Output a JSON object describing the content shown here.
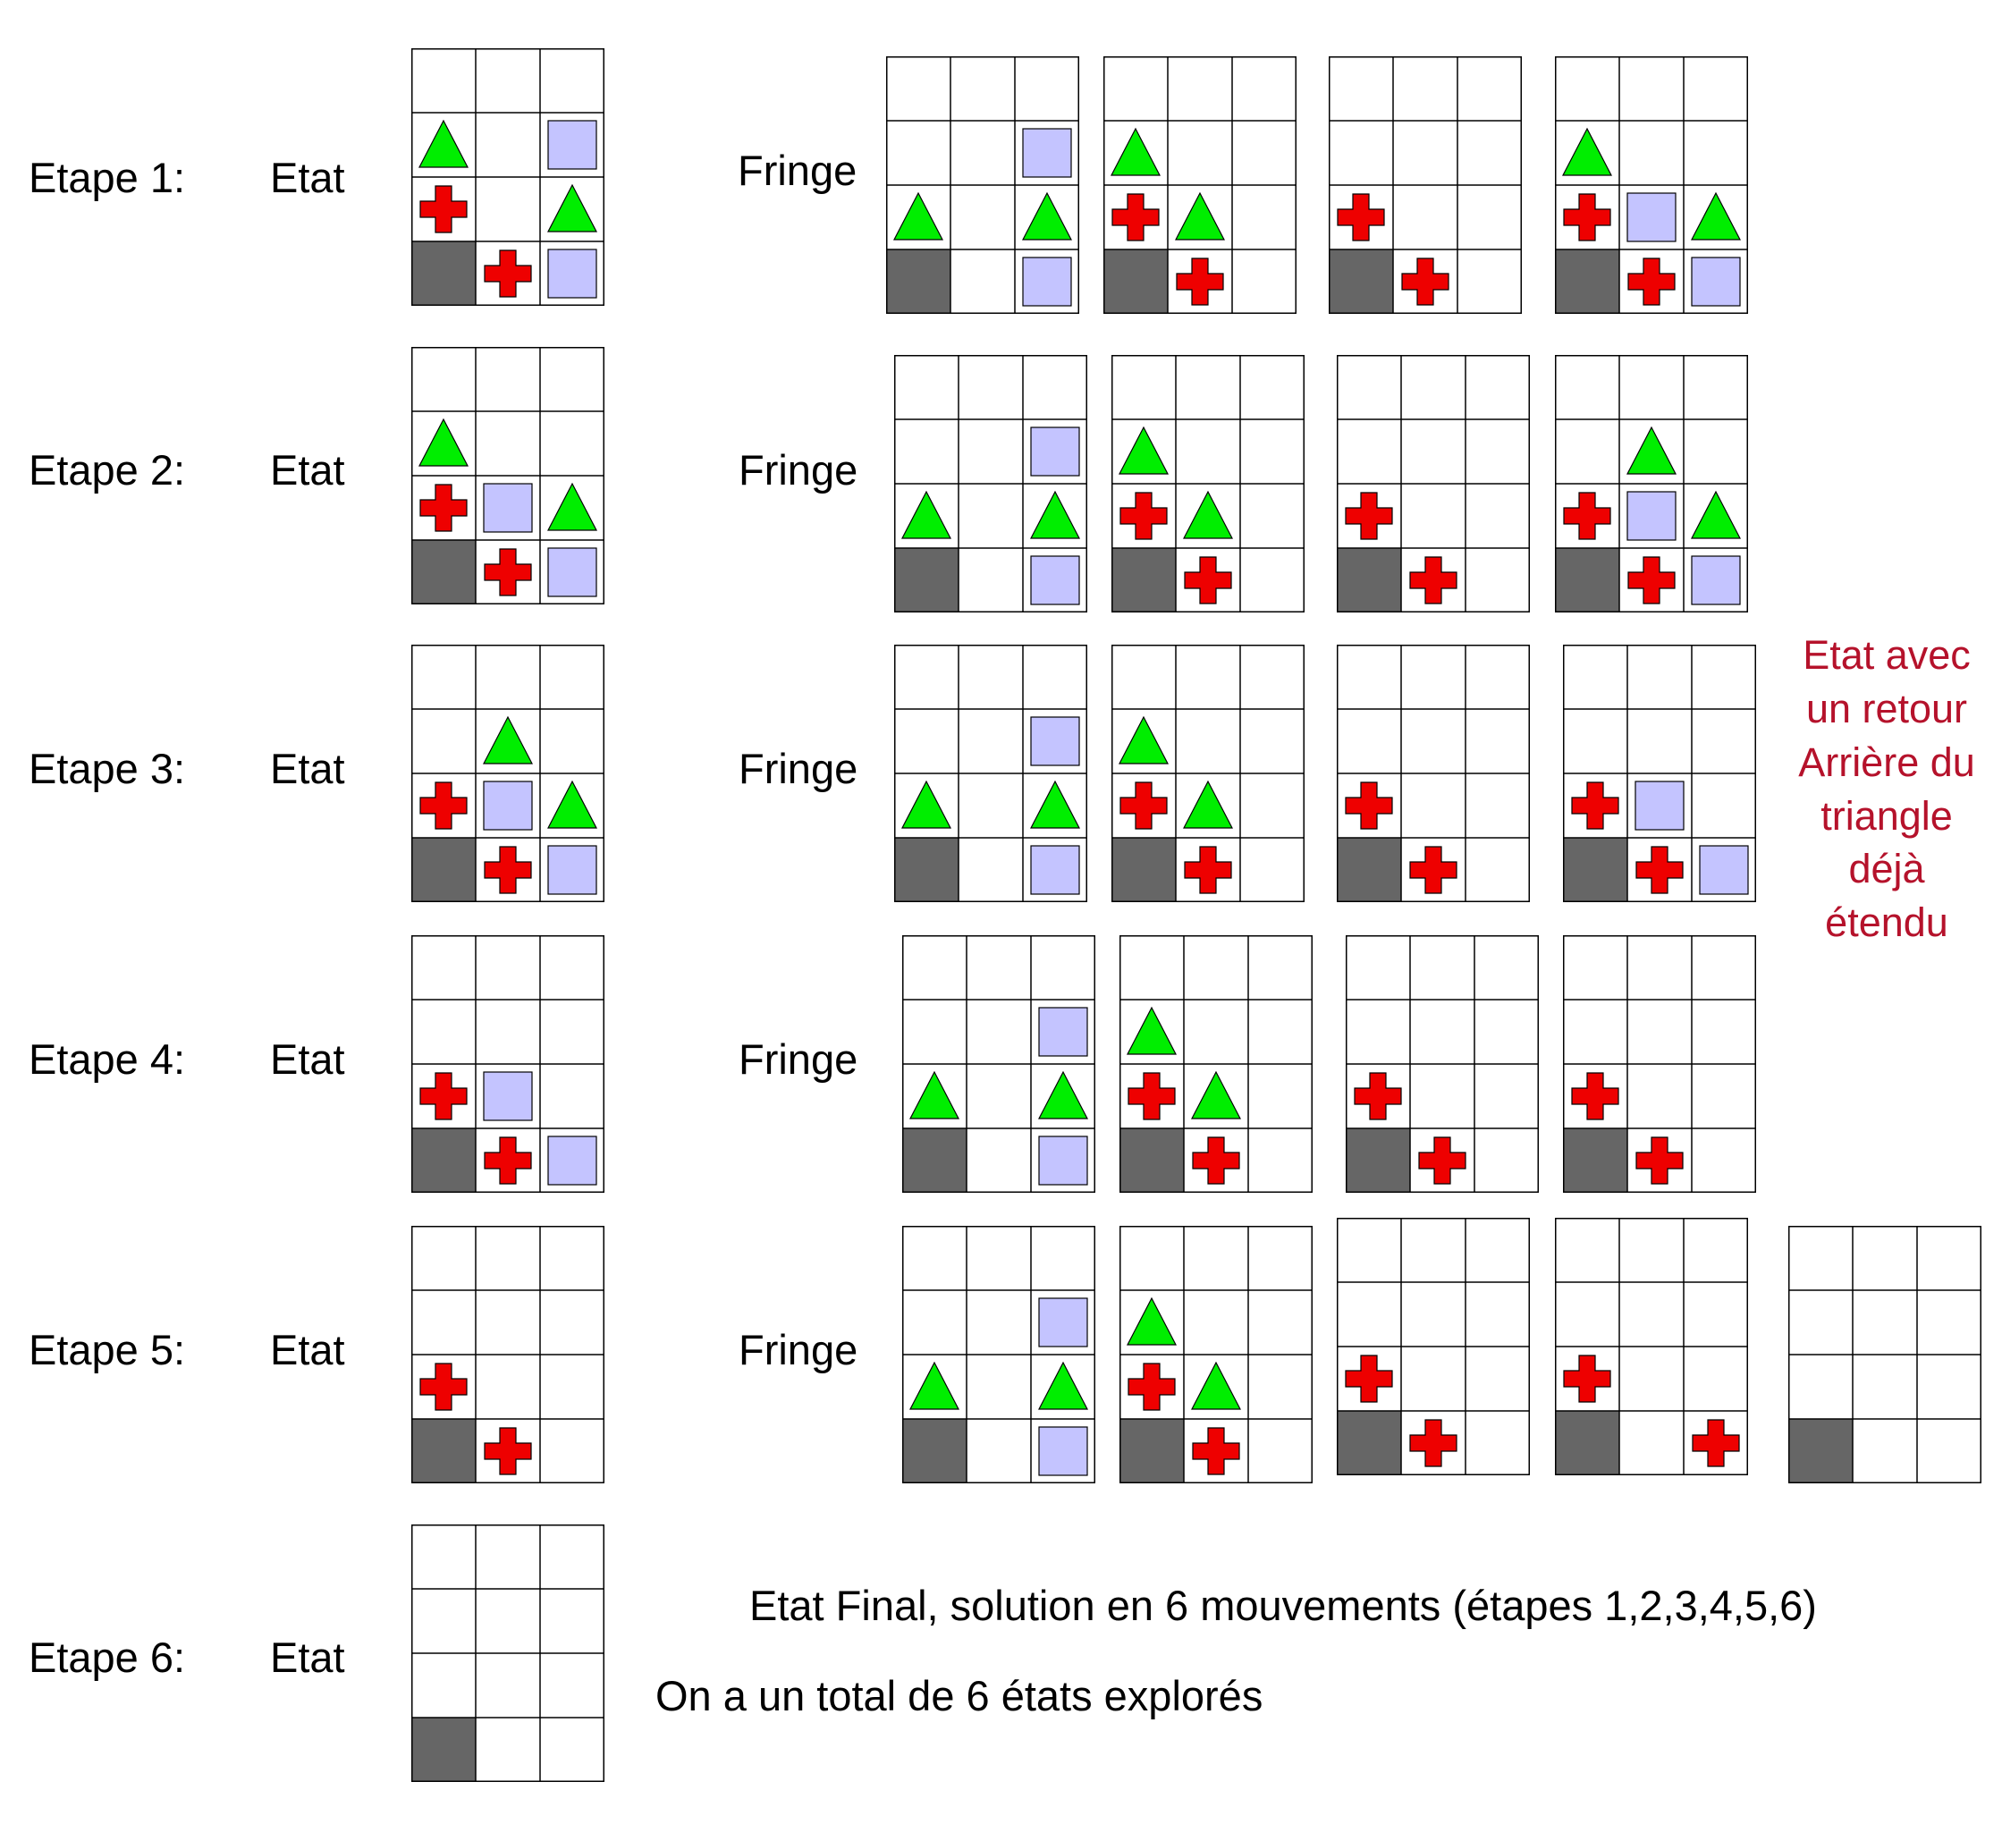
{
  "legend_note": "Etat avec\nun retour\nArrière du\ntriangle\ndéjà\nétendu",
  "colors": {
    "wall": "#666666",
    "triangle": "#00ee00",
    "cross": "#ee0000",
    "square": "#c4c4ff",
    "grid_line": "#000000"
  },
  "steps": [
    {
      "label": "Etape 1:",
      "state_label": "Etat",
      "fringe_label": "Fringe",
      "state": [
        [
          "",
          "",
          ""
        ],
        [
          "T",
          "",
          "S"
        ],
        [
          "C",
          "",
          "T"
        ],
        [
          "W",
          "C",
          "S"
        ]
      ],
      "fringe": [
        [
          [
            "",
            "",
            ""
          ],
          [
            "",
            "",
            "S"
          ],
          [
            "T",
            "",
            "T"
          ],
          [
            "W",
            "",
            "S"
          ]
        ],
        [
          [
            "",
            "",
            ""
          ],
          [
            "T",
            "",
            ""
          ],
          [
            "C",
            "T",
            ""
          ],
          [
            "W",
            "C",
            ""
          ]
        ],
        [
          [
            "",
            "",
            ""
          ],
          [
            "",
            "",
            ""
          ],
          [
            "C",
            "",
            ""
          ],
          [
            "W",
            "C",
            ""
          ]
        ],
        [
          [
            "",
            "",
            ""
          ],
          [
            "T",
            "",
            ""
          ],
          [
            "C",
            "S",
            "T"
          ],
          [
            "W",
            "C",
            "S"
          ]
        ]
      ]
    },
    {
      "label": "Etape 2:",
      "state_label": "Etat",
      "fringe_label": "Fringe",
      "state": [
        [
          "",
          "",
          ""
        ],
        [
          "T",
          "",
          ""
        ],
        [
          "C",
          "S",
          "T"
        ],
        [
          "W",
          "C",
          "S"
        ]
      ],
      "fringe": [
        [
          [
            "",
            "",
            ""
          ],
          [
            "",
            "",
            "S"
          ],
          [
            "T",
            "",
            "T"
          ],
          [
            "W",
            "",
            "S"
          ]
        ],
        [
          [
            "",
            "",
            ""
          ],
          [
            "T",
            "",
            ""
          ],
          [
            "C",
            "T",
            ""
          ],
          [
            "W",
            "C",
            ""
          ]
        ],
        [
          [
            "",
            "",
            ""
          ],
          [
            "",
            "",
            ""
          ],
          [
            "C",
            "",
            ""
          ],
          [
            "W",
            "C",
            ""
          ]
        ],
        [
          [
            "",
            "",
            ""
          ],
          [
            "",
            "T",
            ""
          ],
          [
            "C",
            "S",
            "T"
          ],
          [
            "W",
            "C",
            "S"
          ]
        ]
      ]
    },
    {
      "label": "Etape 3:",
      "state_label": "Etat",
      "fringe_label": "Fringe",
      "state": [
        [
          "",
          "",
          ""
        ],
        [
          "",
          "T",
          ""
        ],
        [
          "C",
          "S",
          "T"
        ],
        [
          "W",
          "C",
          "S"
        ]
      ],
      "fringe": [
        [
          [
            "",
            "",
            ""
          ],
          [
            "",
            "",
            "S"
          ],
          [
            "T",
            "",
            "T"
          ],
          [
            "W",
            "",
            "S"
          ]
        ],
        [
          [
            "",
            "",
            ""
          ],
          [
            "T",
            "",
            ""
          ],
          [
            "C",
            "T",
            ""
          ],
          [
            "W",
            "C",
            ""
          ]
        ],
        [
          [
            "",
            "",
            ""
          ],
          [
            "",
            "",
            ""
          ],
          [
            "C",
            "",
            ""
          ],
          [
            "W",
            "C",
            ""
          ]
        ],
        [
          [
            "",
            "",
            ""
          ],
          [
            "",
            "",
            ""
          ],
          [
            "C",
            "S",
            ""
          ],
          [
            "W",
            "C",
            "S"
          ]
        ]
      ]
    },
    {
      "label": "Etape 4:",
      "state_label": "Etat",
      "fringe_label": "Fringe",
      "state": [
        [
          "",
          "",
          ""
        ],
        [
          "",
          "",
          ""
        ],
        [
          "C",
          "S",
          ""
        ],
        [
          "W",
          "C",
          "S"
        ]
      ],
      "fringe": [
        [
          [
            "",
            "",
            ""
          ],
          [
            "",
            "",
            "S"
          ],
          [
            "T",
            "",
            "T"
          ],
          [
            "W",
            "",
            "S"
          ]
        ],
        [
          [
            "",
            "",
            ""
          ],
          [
            "T",
            "",
            ""
          ],
          [
            "C",
            "T",
            ""
          ],
          [
            "W",
            "C",
            ""
          ]
        ],
        [
          [
            "",
            "",
            ""
          ],
          [
            "",
            "",
            ""
          ],
          [
            "C",
            "",
            ""
          ],
          [
            "W",
            "C",
            ""
          ]
        ],
        [
          [
            "",
            "",
            ""
          ],
          [
            "",
            "",
            ""
          ],
          [
            "C",
            "",
            ""
          ],
          [
            "W",
            "C",
            ""
          ]
        ]
      ]
    },
    {
      "label": "Etape 5:",
      "state_label": "Etat",
      "fringe_label": "Fringe",
      "state": [
        [
          "",
          "",
          ""
        ],
        [
          "",
          "",
          ""
        ],
        [
          "C",
          "",
          ""
        ],
        [
          "W",
          "C",
          ""
        ]
      ],
      "fringe": [
        [
          [
            "",
            "",
            ""
          ],
          [
            "",
            "",
            "S"
          ],
          [
            "T",
            "",
            "T"
          ],
          [
            "W",
            "",
            "S"
          ]
        ],
        [
          [
            "",
            "",
            ""
          ],
          [
            "T",
            "",
            ""
          ],
          [
            "C",
            "T",
            ""
          ],
          [
            "W",
            "C",
            ""
          ]
        ],
        [
          [
            "",
            "",
            ""
          ],
          [
            "",
            "",
            ""
          ],
          [
            "C",
            "",
            ""
          ],
          [
            "W",
            "C",
            ""
          ]
        ],
        [
          [
            "",
            "",
            ""
          ],
          [
            "",
            "",
            ""
          ],
          [
            "C",
            "",
            ""
          ],
          [
            "W",
            "",
            "C"
          ]
        ],
        [
          [
            "",
            "",
            ""
          ],
          [
            "",
            "",
            ""
          ],
          [
            "",
            "",
            ""
          ],
          [
            "W",
            "",
            ""
          ]
        ]
      ]
    },
    {
      "label": "Etape 6:",
      "state_label": "Etat",
      "state": [
        [
          "",
          "",
          ""
        ],
        [
          "",
          "",
          ""
        ],
        [
          "",
          "",
          ""
        ],
        [
          "W",
          "",
          ""
        ]
      ],
      "final_text": "Etat Final, solution en 6 mouvements (étapes 1,2,3,4,5,6)",
      "total_text": "On a un total de 6 états explorés"
    }
  ]
}
